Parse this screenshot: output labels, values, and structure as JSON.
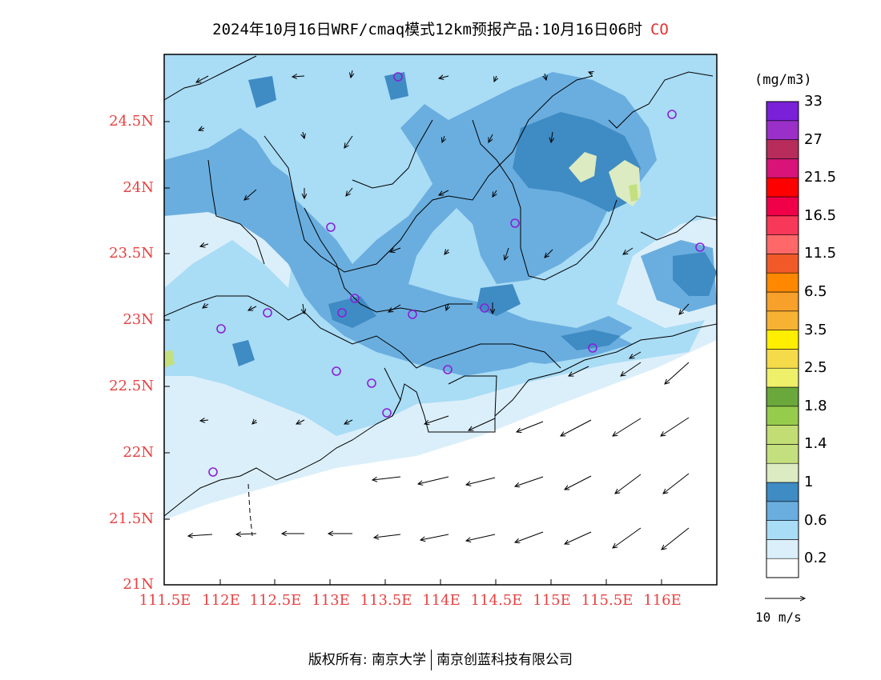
{
  "title": {
    "text": "2024年10月16日WRF/cmaq模式12km预报产品:10月16日06时",
    "species": "CO"
  },
  "map": {
    "lon_range": [
      111.5,
      116.5
    ],
    "lat_range": [
      21.0,
      25.0
    ],
    "y_ticks": [
      "21N",
      "21.5N",
      "22N",
      "22.5N",
      "23N",
      "23.5N",
      "24N",
      "24.5N"
    ],
    "x_ticks": [
      "111.5E",
      "112E",
      "112.5E",
      "113E",
      "113.5E",
      "114E",
      "114.5E",
      "115E",
      "115.5E",
      "116E"
    ],
    "tick_color": "#e84040",
    "stations_count_visible": 19
  },
  "colorbar": {
    "unit": "(mg/m3)",
    "colors": [
      "#ffffff",
      "#dbeffa",
      "#a9dcf5",
      "#6aaedf",
      "#3f8bc4",
      "#dcebc1",
      "#c4e07e",
      "#c2dd74",
      "#96cc4c",
      "#6aa83c",
      "#eef06a",
      "#f5da4a",
      "#ffee00",
      "#f7b233",
      "#f7a02a",
      "#ff8800",
      "#f05a28",
      "#ff6868",
      "#f83858",
      "#f00048",
      "#ff0000",
      "#d81478",
      "#b82c5c",
      "#9a30c8",
      "#7a20d8"
    ],
    "labels": [
      "0.2",
      "0.6",
      "1",
      "1.4",
      "1.8",
      "2.5",
      "3.5",
      "6.5",
      "11.5",
      "16.5",
      "21.5",
      "27",
      "33"
    ]
  },
  "wind_reference": {
    "label": "10 m/s"
  },
  "footer": {
    "copyright": "版权所有: 南京大学",
    "company": "南京创蓝科技有限公司"
  }
}
